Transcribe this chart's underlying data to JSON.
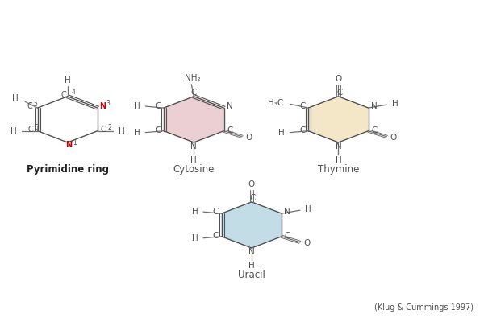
{
  "bg_color": "#ffffff",
  "ring_color_cytosine": "#d8a0a8",
  "ring_color_thymine": "#e8d090",
  "ring_color_uracil": "#88bcd0",
  "n_color_red": "#cc0000",
  "bond_color": "#505050",
  "h_bond_color": "#707070",
  "label_cytosine": "Cytosine",
  "label_thymine": "Thymine",
  "label_uracil": "Uracil",
  "label_pyrimidine": "Pyrimidine ring",
  "citation": "(Klug & Cummings 1997)"
}
